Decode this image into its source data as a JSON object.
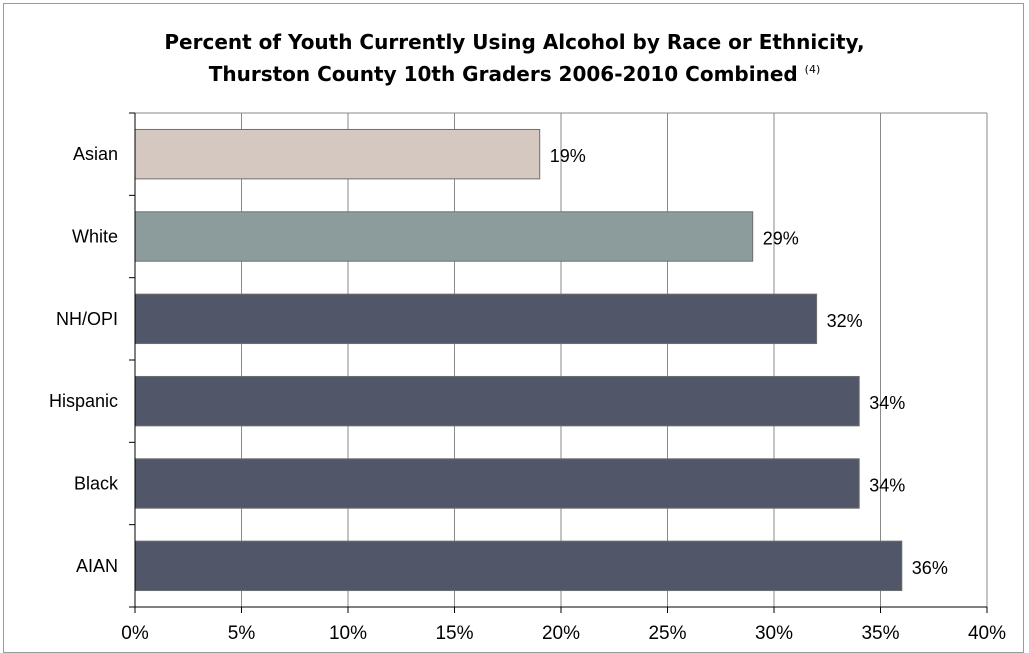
{
  "title": {
    "line1": "Percent of Youth Currently Using Alcohol by Race or Ethnicity,",
    "line2": "Thurston County 10th Graders 2006-2010 Combined",
    "footnote": "(4)"
  },
  "chart_data": {
    "type": "bar",
    "orientation": "horizontal",
    "title": "Percent of Youth Currently Using Alcohol by Race or Ethnicity, Thurston County 10th Graders 2006-2010 Combined (4)",
    "categories": [
      "Asian",
      "White",
      "NH/OPI",
      "Hispanic",
      "Black",
      "AIAN"
    ],
    "values": [
      19,
      29,
      32,
      34,
      34,
      36
    ],
    "data_labels": [
      "19%",
      "29%",
      "32%",
      "34%",
      "34%",
      "36%"
    ],
    "bar_colors": [
      "#d5c8c0",
      "#8c9c9c",
      "#515669",
      "#515669",
      "#515669",
      "#515669"
    ],
    "xlim": [
      0,
      40
    ],
    "x_ticks": [
      0,
      5,
      10,
      15,
      20,
      25,
      30,
      35,
      40
    ],
    "x_tick_labels": [
      "0%",
      "5%",
      "10%",
      "15%",
      "20%",
      "25%",
      "30%",
      "35%",
      "40%"
    ],
    "xlabel": "",
    "ylabel": "",
    "grid": "vertical",
    "legend": "none"
  }
}
